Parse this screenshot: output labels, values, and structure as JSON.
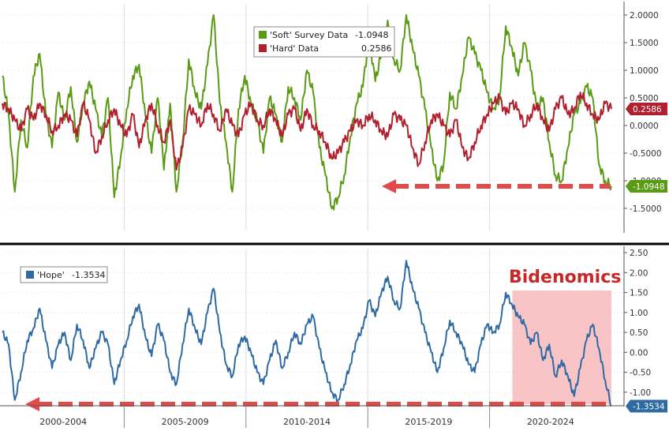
{
  "chart_data": [
    {
      "type": "line",
      "series": [
        {
          "name": "'Soft' Survey Data",
          "last_label": "-1.0948",
          "color": "#5a9a14",
          "values": [
            0.9,
            0.2,
            -1.2,
            0.1,
            -0.4,
            0.9,
            1.3,
            0.2,
            -0.4,
            0.6,
            0.1,
            0.7,
            -0.3,
            0.4,
            0.8,
            0.3,
            -0.2,
            0.5,
            -1.3,
            -0.6,
            0.3,
            0.9,
            1.1,
            0.2,
            -0.5,
            0.5,
            -0.8,
            0.4,
            -1.2,
            -0.3,
            1.2,
            0.6,
            0.3,
            1.1,
            2.0,
            0.4,
            -0.3,
            -1.2,
            0.3,
            0.9,
            0.4,
            0.1,
            -0.5,
            0.5,
            0.2,
            -0.3,
            0.7,
            0.5,
            0.1,
            1.0,
            0.6,
            -0.4,
            -0.9,
            -1.5,
            -1.3,
            -0.9,
            -0.2,
            0.4,
            0.7,
            1.6,
            0.8,
            1.3,
            1.9,
            1.2,
            1.0,
            2.0,
            1.4,
            0.9,
            0.3,
            -0.4,
            -1.0,
            -0.7,
            0.6,
            0.3,
            0.9,
            1.6,
            1.3,
            1.0,
            0.6,
            0.3,
            0.5,
            1.8,
            1.4,
            0.9,
            1.5,
            1.0,
            0.3,
            0.5,
            -0.3,
            -0.9,
            -1.0,
            -0.4,
            0.2,
            0.4,
            0.7,
            0.5,
            -0.7,
            -1.0,
            -1.1
          ]
        },
        {
          "name": "'Hard' Data",
          "last_label": "0.2586",
          "color": "#b0202e",
          "values": [
            0.4,
            0.3,
            0.1,
            -0.1,
            0.3,
            0.1,
            0.4,
            0.2,
            -0.1,
            0.0,
            0.2,
            0.1,
            -0.2,
            0.4,
            0.1,
            -0.5,
            -0.2,
            0.1,
            0.3,
            0.0,
            -0.2,
            0.2,
            -0.4,
            0.1,
            0.4,
            0.0,
            -0.3,
            0.1,
            -0.8,
            -0.4,
            0.3,
            0.2,
            0.0,
            0.4,
            0.2,
            -0.1,
            0.3,
            0.0,
            -0.2,
            0.2,
            0.4,
            0.1,
            0.0,
            0.3,
            0.1,
            -0.2,
            0.2,
            0.3,
            -0.1,
            0.3,
            0.0,
            -0.1,
            -0.3,
            -0.6,
            -0.5,
            -0.3,
            -0.1,
            0.1,
            0.0,
            0.2,
            0.1,
            -0.1,
            -0.2,
            0.2,
            0.1,
            0.0,
            -0.4,
            -0.7,
            -0.3,
            0.1,
            0.2,
            0.0,
            -0.2,
            0.1,
            -0.4,
            -0.6,
            -0.3,
            0.0,
            0.2,
            0.4,
            0.5,
            0.2,
            0.4,
            0.3,
            0.0,
            0.2,
            0.4,
            0.1,
            -0.1,
            0.3,
            0.5,
            0.2,
            0.3,
            0.6,
            0.4,
            0.2,
            0.1,
            0.4,
            0.3
          ]
        }
      ],
      "ylim": [
        -1.9,
        2.2
      ],
      "yticks": [
        "2.0000",
        "1.5000",
        "1.0000",
        "0.5000",
        "0.0000",
        "-0.5000",
        "-1.0000",
        "-1.5000"
      ],
      "ytick_values": [
        2.0,
        1.5,
        1.0,
        0.5,
        0.0,
        -0.5,
        -1.0,
        -1.5
      ],
      "reference_level": -1.1,
      "legend": "top-center"
    },
    {
      "type": "line",
      "series": [
        {
          "name": "'Hope'",
          "last_label": "-1.3534",
          "color": "#2f6aa3",
          "values": [
            0.5,
            0.2,
            -1.2,
            -0.5,
            0.3,
            0.6,
            1.1,
            0.3,
            -0.4,
            0.2,
            0.5,
            -0.2,
            0.7,
            0.3,
            -0.4,
            0.1,
            0.5,
            0.2,
            -0.8,
            -0.2,
            0.3,
            0.9,
            1.2,
            0.4,
            -0.1,
            0.7,
            0.3,
            -0.5,
            -0.8,
            0.2,
            1.1,
            0.6,
            0.2,
            1.0,
            1.6,
            0.5,
            -0.3,
            -0.6,
            0.2,
            0.4,
            0.0,
            -0.5,
            -0.8,
            -0.2,
            0.3,
            -0.4,
            0.0,
            0.5,
            0.2,
            0.7,
            0.9,
            0.1,
            -0.5,
            -1.0,
            -1.2,
            -0.8,
            -0.3,
            0.3,
            0.6,
            1.3,
            0.9,
            1.5,
            1.9,
            1.3,
            1.1,
            2.3,
            1.6,
            1.1,
            0.5,
            0.0,
            -0.5,
            0.1,
            0.8,
            0.5,
            0.2,
            -0.3,
            -0.5,
            0.2,
            0.7,
            0.5,
            0.7,
            1.5,
            1.2,
            0.9,
            0.7,
            0.2,
            0.5,
            -0.2,
            0.2,
            -0.6,
            -0.2,
            -0.6,
            -1.1,
            -0.4,
            0.3,
            0.7,
            0.1,
            -0.7,
            -1.35
          ]
        }
      ],
      "ylim": [
        -1.3,
        2.6
      ],
      "yticks": [
        "2.50",
        "2.00",
        "1.50",
        "1.00",
        "0.50",
        "0.00",
        "-0.50",
        "-1.00"
      ],
      "ytick_values": [
        2.5,
        2.0,
        1.5,
        1.0,
        0.5,
        0.0,
        -0.5,
        -1.0
      ],
      "reference_level": -1.3,
      "annotation": "Bidenomics",
      "shaded_from": "2020-2024",
      "legend": "top-left"
    }
  ],
  "xticks": [
    "2000-2004",
    "2005-2009",
    "2010-2014",
    "2015-2019",
    "2020-2024"
  ],
  "colors": {
    "top_bg": "#ffffff",
    "axis_line": "#000000",
    "arrow": "#e24a4a",
    "shade": "#f5b0b3",
    "annotation": "#c62828",
    "label_text_dark": "#ffffff"
  }
}
